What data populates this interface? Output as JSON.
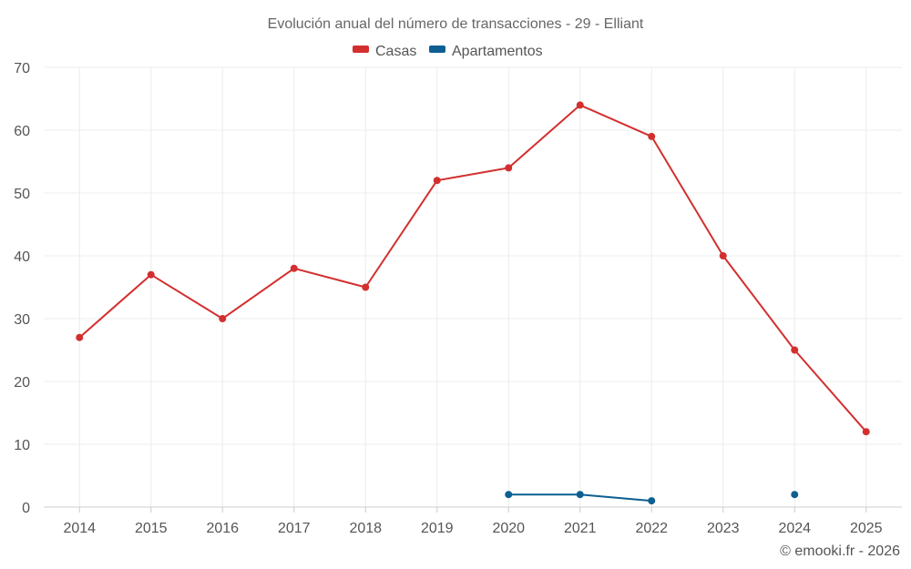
{
  "chart_data": {
    "type": "line",
    "title": "Evolución anual del número de transacciones - 29 - Elliant",
    "categories": [
      "2014",
      "2015",
      "2016",
      "2017",
      "2018",
      "2019",
      "2020",
      "2021",
      "2022",
      "2023",
      "2024",
      "2025"
    ],
    "series": [
      {
        "name": "Casas",
        "color": "#d32f2f",
        "values": [
          27,
          37,
          30,
          38,
          35,
          52,
          54,
          64,
          59,
          40,
          25,
          12
        ]
      },
      {
        "name": "Apartamentos",
        "color": "#0d5f91",
        "values": [
          null,
          null,
          null,
          null,
          null,
          null,
          2,
          2,
          1,
          null,
          2,
          null
        ]
      }
    ],
    "ylim": [
      0,
      70
    ],
    "yticks": [
      "0",
      "10",
      "20",
      "30",
      "40",
      "50",
      "60",
      "70"
    ],
    "ytick_values": [
      0,
      10,
      20,
      30,
      40,
      50,
      60,
      70
    ],
    "xlabel": "",
    "ylabel": "",
    "grid": true,
    "legend_position": "top-center"
  },
  "credit": "© emooki.fr - 2026"
}
